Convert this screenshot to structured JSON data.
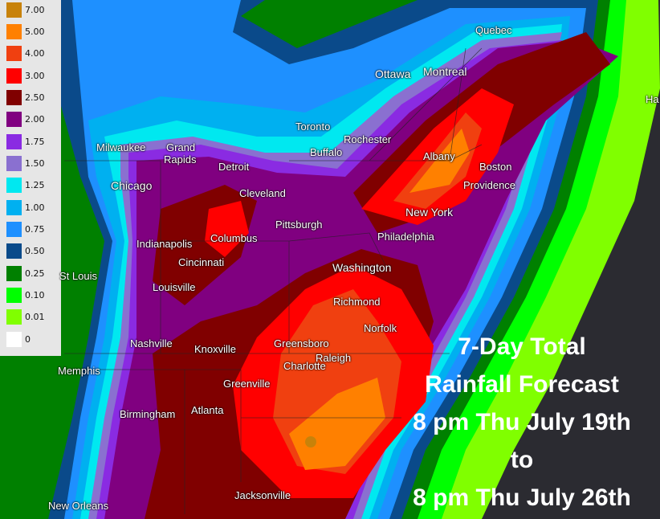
{
  "legend": {
    "items": [
      {
        "value": "7.00",
        "color": "#c8820a"
      },
      {
        "value": "5.00",
        "color": "#ff8000"
      },
      {
        "value": "4.00",
        "color": "#f04010"
      },
      {
        "value": "3.00",
        "color": "#ff0000"
      },
      {
        "value": "2.50",
        "color": "#800000"
      },
      {
        "value": "2.00",
        "color": "#800080"
      },
      {
        "value": "1.75",
        "color": "#8a2be2"
      },
      {
        "value": "1.50",
        "color": "#8a70d0"
      },
      {
        "value": "1.25",
        "color": "#00e8f0"
      },
      {
        "value": "1.00",
        "color": "#00b0f0"
      },
      {
        "value": "0.75",
        "color": "#1e90ff"
      },
      {
        "value": "0.50",
        "color": "#0a4a8a"
      },
      {
        "value": "0.25",
        "color": "#008000"
      },
      {
        "value": "0.10",
        "color": "#00ff00"
      },
      {
        "value": "0.01",
        "color": "#80ff00"
      },
      {
        "value": "0",
        "color": "#ffffff"
      }
    ]
  },
  "cities": [
    {
      "name": "Quebec"
    },
    {
      "name": "Ottawa"
    },
    {
      "name": "Montreal"
    },
    {
      "name": "Toronto"
    },
    {
      "name": "Rochester"
    },
    {
      "name": "Buffalo"
    },
    {
      "name": "Milwaukee"
    },
    {
      "name": "Grand"
    },
    {
      "name": "Rapids"
    },
    {
      "name": "Detroit"
    },
    {
      "name": "Albany"
    },
    {
      "name": "Boston"
    },
    {
      "name": "Providence"
    },
    {
      "name": "Chicago"
    },
    {
      "name": "Cleveland"
    },
    {
      "name": "New York"
    },
    {
      "name": "Pittsburgh"
    },
    {
      "name": "Philadelphia"
    },
    {
      "name": "Columbus"
    },
    {
      "name": "Indianapolis"
    },
    {
      "name": "Cincinnati"
    },
    {
      "name": "Washington"
    },
    {
      "name": "St Louis"
    },
    {
      "name": "Louisville"
    },
    {
      "name": "Richmond"
    },
    {
      "name": "Norfolk"
    },
    {
      "name": "Nashville"
    },
    {
      "name": "Knoxville"
    },
    {
      "name": "Greensboro"
    },
    {
      "name": "Raleigh"
    },
    {
      "name": "Charlotte"
    },
    {
      "name": "Memphis"
    },
    {
      "name": "Greenville"
    },
    {
      "name": "Birmingham"
    },
    {
      "name": "Atlanta"
    },
    {
      "name": "New Orleans"
    },
    {
      "name": "Jacksonville"
    },
    {
      "name": "Ha"
    }
  ],
  "title": {
    "line1": "7-Day Total",
    "line2": "Rainfall Forecast",
    "line3": "8 pm Thu July 19th",
    "line4": "to",
    "line5": "8 pm Thu July 26th"
  }
}
